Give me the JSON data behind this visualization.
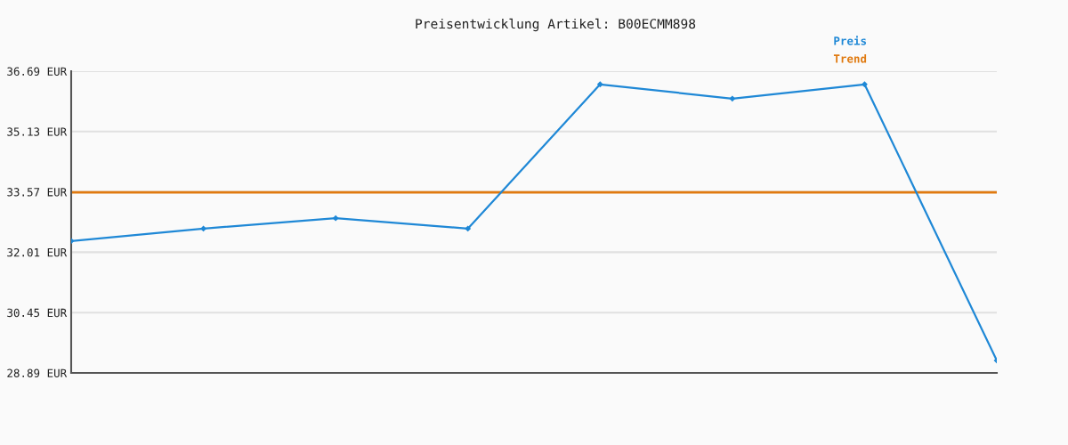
{
  "chart_data": {
    "type": "line",
    "title": "Preisentwicklung Artikel: B00ECMM898",
    "categories": [
      null,
      null,
      null,
      null,
      null,
      null,
      null,
      null
    ],
    "series": [
      {
        "name": "Preis",
        "color": "#1f88d6",
        "values": [
          32.3,
          32.62,
          32.89,
          32.62,
          36.35,
          35.98,
          36.35,
          29.21
        ],
        "marker": "diamond"
      },
      {
        "name": "Trend",
        "color": "#e07a10",
        "values": [
          33.56,
          33.56,
          33.56,
          33.56,
          33.56,
          33.56,
          33.56,
          33.56
        ],
        "marker": "none"
      }
    ],
    "ylim": [
      28.89,
      36.69
    ],
    "yticks": [
      {
        "value": 28.89,
        "label": "28.89 EUR"
      },
      {
        "value": 30.45,
        "label": "30.45 EUR"
      },
      {
        "value": 32.01,
        "label": "32.01 EUR"
      },
      {
        "value": 33.57,
        "label": "33.57 EUR"
      },
      {
        "value": 35.13,
        "label": "35.13 EUR"
      },
      {
        "value": 36.69,
        "label": "36.69 EUR"
      }
    ],
    "grid": "y",
    "legend": "top right",
    "tick_labels": "y"
  }
}
